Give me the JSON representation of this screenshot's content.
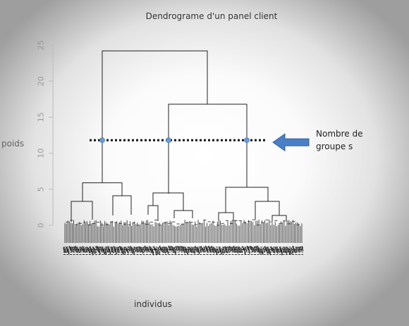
{
  "chart_data": {
    "type": "dendrogram",
    "title": "Dendrograme d'un panel client",
    "xlabel": "individus",
    "ylabel": "poids",
    "ylim": [
      0,
      25
    ],
    "yticks": [
      "0",
      "5",
      "10",
      "15",
      "20",
      "25"
    ],
    "merges": [
      {
        "id": "root",
        "height": 24.2
      },
      {
        "id": "right-group",
        "height": 16.8
      },
      {
        "id": "cluster-1",
        "height": 5.9
      },
      {
        "id": "cluster-2",
        "height": 4.4
      },
      {
        "id": "cluster-3",
        "height": 5.3
      }
    ],
    "cut_height": 11.8,
    "annotation": "Nombre de groupe s",
    "colors": {
      "tree": "#222222",
      "cut_line": "#111111",
      "cut_points": "#6a9bd8",
      "arrow": "#4a7fc8",
      "arrow_edge": "#2f5f9e"
    }
  }
}
